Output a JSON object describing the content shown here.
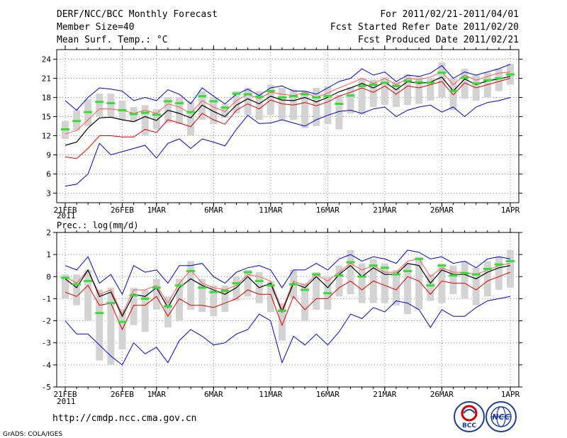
{
  "header": {
    "title": "DERF/NCC/BCC Monthly Forecast",
    "member_size": "Member Size=40",
    "variable": "Mean Surf. Temp.: °C",
    "period": "For 2011/02/21-2011/04/01",
    "refer_date": "Fcst Started Refer Date 2011/02/20",
    "produced_date": "Fcst Produced Date 2011/02/21"
  },
  "footer": {
    "url": "http://cmdp.ncc.cma.gov.cn",
    "credit": "GrADS: COLA/IGES",
    "logo_bcc_text": "BCC",
    "logo_ncc_text": "NCC"
  },
  "colors": {
    "envelope": "#0000cc",
    "mean": "#000000",
    "lower": "#dd0000",
    "upper": "#ff5555",
    "box": "#d3d3d3",
    "median": "#33dd33",
    "grid": "#555555"
  },
  "chart_data": [
    {
      "type": "line",
      "title": "Mean Surf. Temp.: °C",
      "ylim": [
        1.5,
        25.5
      ],
      "yticks": [
        3,
        6,
        9,
        12,
        15,
        18,
        21,
        24
      ],
      "xlim": [
        0,
        39
      ],
      "x_tick_positions": [
        0,
        5,
        8,
        13,
        18,
        23,
        28,
        33,
        39
      ],
      "x_tick_labels": [
        "21FEB",
        "26FEB",
        "1MAR",
        "6MAR",
        "11MAR",
        "16MAR",
        "21MAR",
        "26MAR",
        "1APR"
      ],
      "x_year_label": "2011",
      "series": [
        {
          "name": "max",
          "values": [
            17.5,
            16.0,
            18.0,
            19.5,
            19.3,
            19.0,
            17.5,
            18.0,
            17.5,
            19.2,
            18.5,
            17.0,
            19.5,
            18.2,
            17.0,
            18.5,
            19.3,
            18.3,
            19.5,
            19.8,
            19.0,
            19.0,
            18.5,
            19.5,
            20.5,
            21.0,
            22.5,
            21.5,
            22.0,
            20.5,
            21.5,
            21.3,
            21.8,
            23.0,
            21.0,
            22.0,
            21.5,
            22.0,
            22.5,
            23.2
          ]
        },
        {
          "name": "upper",
          "values": [
            12.3,
            12.8,
            14.5,
            16.2,
            16.2,
            16.0,
            15.5,
            16.0,
            15.5,
            17.0,
            16.5,
            15.5,
            17.5,
            16.5,
            15.8,
            17.5,
            18.5,
            17.8,
            18.8,
            18.5,
            18.3,
            18.8,
            18.0,
            18.7,
            19.5,
            20.2,
            21.0,
            20.2,
            21.0,
            20.0,
            21.0,
            20.8,
            21.2,
            22.0,
            20.0,
            21.5,
            20.7,
            21.3,
            21.8,
            22.0
          ]
        },
        {
          "name": "mean",
          "values": [
            10.5,
            11.0,
            13.2,
            14.8,
            14.9,
            14.5,
            14.2,
            15.0,
            14.4,
            16.0,
            15.5,
            14.8,
            16.8,
            15.8,
            15.0,
            16.8,
            17.8,
            17.0,
            18.2,
            17.6,
            17.5,
            18.0,
            17.3,
            18.0,
            18.9,
            19.5,
            20.2,
            19.5,
            20.4,
            19.2,
            20.5,
            20.2,
            20.4,
            21.2,
            19.0,
            20.9,
            20.0,
            20.6,
            20.9,
            21.3
          ]
        },
        {
          "name": "lower",
          "values": [
            8.7,
            8.4,
            10.0,
            12.0,
            12.0,
            11.8,
            11.8,
            13.0,
            12.5,
            14.5,
            14.0,
            13.4,
            15.5,
            14.5,
            13.8,
            16.0,
            17.0,
            16.2,
            17.6,
            17.0,
            16.8,
            17.2,
            16.7,
            17.3,
            18.2,
            18.8,
            19.5,
            18.8,
            19.8,
            18.5,
            19.8,
            19.5,
            20.0,
            20.5,
            18.4,
            20.3,
            19.5,
            20.0,
            20.5,
            21.0
          ]
        },
        {
          "name": "min",
          "values": [
            4.1,
            4.4,
            6.0,
            10.8,
            9.0,
            9.5,
            10.0,
            10.5,
            8.5,
            10.8,
            11.5,
            10.0,
            11.5,
            11.0,
            10.4,
            13.0,
            15.2,
            13.9,
            14.0,
            14.5,
            14.0,
            13.5,
            14.5,
            15.2,
            15.8,
            16.0,
            15.5,
            16.2,
            16.5,
            15.0,
            16.0,
            16.5,
            16.8,
            15.7,
            16.5,
            15.0,
            16.5,
            17.2,
            17.5,
            18.0
          ]
        }
      ],
      "boxes": [
        {
          "low": 11.5,
          "high": 14.3,
          "median": 13.0
        },
        {
          "low": 12.8,
          "high": 16.0,
          "median": 14.3
        },
        {
          "low": 13.5,
          "high": 17.7,
          "median": 15.7
        },
        {
          "low": 15.0,
          "high": 18.6,
          "median": 17.3
        },
        {
          "low": 14.8,
          "high": 18.6,
          "median": 17.1
        },
        {
          "low": 14.5,
          "high": 17.5,
          "median": 16.0
        },
        {
          "low": 14.2,
          "high": 16.5,
          "median": 15.4
        },
        {
          "low": 12.0,
          "high": 16.8,
          "median": 15.6
        },
        {
          "low": 13.0,
          "high": 16.2,
          "median": 15.3
        },
        {
          "low": 14.0,
          "high": 18.0,
          "median": 17.4
        },
        {
          "low": 13.8,
          "high": 18.0,
          "median": 17.1
        },
        {
          "low": 12.0,
          "high": 17.4,
          "median": 15.7
        },
        {
          "low": 14.5,
          "high": 19.0,
          "median": 18.2
        },
        {
          "low": 13.8,
          "high": 18.0,
          "median": 17.4
        },
        {
          "low": 14.8,
          "high": 17.0,
          "median": 16.4
        },
        {
          "low": 15.5,
          "high": 19.0,
          "median": 18.6
        },
        {
          "low": 15.2,
          "high": 19.5,
          "median": 18.5
        },
        {
          "low": 14.5,
          "high": 19.0,
          "median": 18.1
        },
        {
          "low": 15.3,
          "high": 20.0,
          "median": 19.0
        },
        {
          "low": 14.5,
          "high": 19.5,
          "median": 18.0
        },
        {
          "low": 14.5,
          "high": 19.3,
          "median": 18.2
        },
        {
          "low": 13.2,
          "high": 19.0,
          "median": 18.5
        },
        {
          "low": 13.5,
          "high": 19.5,
          "median": 18.0
        },
        {
          "low": 13.8,
          "high": 19.8,
          "median": 18.2
        },
        {
          "low": 13.0,
          "high": 18.4,
          "median": 17.0
        },
        {
          "low": 15.5,
          "high": 19.6,
          "median": 18.3
        },
        {
          "low": 15.3,
          "high": 21.0,
          "median": 19.8
        },
        {
          "low": 16.5,
          "high": 20.8,
          "median": 20.0
        },
        {
          "low": 16.8,
          "high": 21.2,
          "median": 20.3
        },
        {
          "low": 16.5,
          "high": 20.5,
          "median": 19.8
        },
        {
          "low": 16.8,
          "high": 21.6,
          "median": 20.6
        },
        {
          "low": 17.0,
          "high": 21.3,
          "median": 20.4
        },
        {
          "low": 17.5,
          "high": 21.0,
          "median": 20.3
        },
        {
          "low": 18.0,
          "high": 23.5,
          "median": 21.9
        },
        {
          "low": 16.0,
          "high": 21.0,
          "median": 19.0
        },
        {
          "low": 17.8,
          "high": 22.5,
          "median": 21.1
        },
        {
          "low": 17.5,
          "high": 21.5,
          "median": 20.2
        },
        {
          "low": 18.0,
          "high": 21.9,
          "median": 20.7
        },
        {
          "low": 19.0,
          "high": 22.5,
          "median": 21.0
        },
        {
          "low": 20.0,
          "high": 23.3,
          "median": 21.6
        }
      ]
    },
    {
      "type": "line",
      "title": "Prec.: log(mm/d)",
      "ylim": [
        -5,
        2
      ],
      "yticks": [
        -5,
        -4,
        -3,
        -2,
        -1,
        0,
        1,
        2
      ],
      "xlim": [
        0,
        39
      ],
      "x_tick_positions": [
        0,
        5,
        8,
        13,
        18,
        23,
        28,
        33,
        39
      ],
      "x_tick_labels": [
        "21FEB",
        "26FEB",
        "1MAR",
        "6MAR",
        "11MAR",
        "16MAR",
        "21MAR",
        "26MAR",
        "1APR"
      ],
      "x_year_label": "2011",
      "series": [
        {
          "name": "max",
          "values": [
            0.5,
            0.3,
            0.9,
            -0.3,
            0.1,
            -0.8,
            0.5,
            0.2,
            0.3,
            -0.3,
            0.5,
            0.5,
            0.6,
            0.0,
            -0.3,
            0.2,
            0.4,
            0.5,
            0.3,
            -0.5,
            0.3,
            0.3,
            0.6,
            0.3,
            0.8,
            1.0,
            0.7,
            0.9,
            0.8,
            0.6,
            1.2,
            1.1,
            0.8,
            0.9,
            0.6,
            0.7,
            0.4,
            0.8,
            0.9,
            0.8
          ]
        },
        {
          "name": "upper",
          "values": [
            0.0,
            -0.3,
            0.3,
            -0.8,
            -0.6,
            -1.7,
            -0.6,
            -0.6,
            -0.4,
            -1.2,
            -0.3,
            0.3,
            -0.3,
            -0.5,
            -0.6,
            -0.4,
            0.1,
            0.0,
            -0.2,
            -1.5,
            -0.2,
            -0.4,
            0.1,
            -0.2,
            0.2,
            0.6,
            0.3,
            0.5,
            0.2,
            0.2,
            0.7,
            0.8,
            0.0,
            0.4,
            0.2,
            0.2,
            0.1,
            0.3,
            0.5,
            0.6
          ]
        },
        {
          "name": "mean",
          "values": [
            -0.1,
            -0.5,
            0.3,
            -0.9,
            -0.7,
            -1.8,
            -0.8,
            -0.9,
            -0.5,
            -1.4,
            -0.5,
            -0.1,
            -0.4,
            -0.6,
            -0.8,
            -0.5,
            0.0,
            -0.5,
            -0.3,
            -1.6,
            -0.3,
            -0.5,
            0.0,
            -0.5,
            0.1,
            0.5,
            0.0,
            0.4,
            0.1,
            0.1,
            0.6,
            0.5,
            -0.3,
            0.3,
            0.1,
            0.1,
            -0.1,
            0.2,
            0.4,
            0.5
          ]
        },
        {
          "name": "lower",
          "values": [
            -0.7,
            -0.9,
            -0.4,
            -1.3,
            -1.2,
            -2.4,
            -1.3,
            -1.3,
            -0.9,
            -1.8,
            -1.0,
            -1.3,
            -1.3,
            -1.4,
            -1.2,
            -1.0,
            -0.6,
            -0.8,
            -0.8,
            -2.2,
            -0.9,
            -1.5,
            -1.0,
            -1.0,
            -0.5,
            -0.2,
            -0.6,
            -0.2,
            -0.4,
            -0.6,
            0.0,
            -0.2,
            -0.8,
            -0.2,
            -0.3,
            -0.3,
            -0.6,
            -0.2,
            0.0,
            0.2
          ]
        },
        {
          "name": "min",
          "values": [
            -2.0,
            -2.6,
            -2.6,
            -3.1,
            -3.6,
            -4.0,
            -3.0,
            -3.5,
            -3.2,
            -3.9,
            -2.9,
            -2.4,
            -2.7,
            -3.1,
            -3.0,
            -2.6,
            -2.4,
            -1.7,
            -2.0,
            -3.9,
            -2.7,
            -3.1,
            -2.6,
            -3.1,
            -2.5,
            -1.7,
            -1.9,
            -1.4,
            -1.6,
            -1.1,
            -1.2,
            -1.5,
            -2.3,
            -1.5,
            -1.8,
            -1.8,
            -1.4,
            -1.1,
            -1.0,
            -0.9
          ]
        }
      ],
      "boxes": [
        {
          "low": -1.0,
          "high": 0.1,
          "median": -0.05
        },
        {
          "low": -1.3,
          "high": 0.1,
          "median": -0.35
        },
        {
          "low": -2.0,
          "high": 0.3,
          "median": -0.2
        },
        {
          "low": -3.8,
          "high": -0.6,
          "median": -1.65
        },
        {
          "low": -4.0,
          "high": -0.5,
          "median": -1.2
        },
        {
          "low": -3.3,
          "high": -1.5,
          "median": -2.05
        },
        {
          "low": -2.2,
          "high": -0.5,
          "median": -0.85
        },
        {
          "low": -2.5,
          "high": -0.6,
          "median": -1.0
        },
        {
          "low": -1.5,
          "high": -0.1,
          "median": -0.5
        },
        {
          "low": -2.3,
          "high": -0.9,
          "median": -1.35
        },
        {
          "low": -2.0,
          "high": -0.1,
          "median": -0.4
        },
        {
          "low": -1.5,
          "high": 0.7,
          "median": 0.25
        },
        {
          "low": -1.6,
          "high": -0.1,
          "median": -0.5
        },
        {
          "low": -1.8,
          "high": -0.4,
          "median": -0.7
        },
        {
          "low": -1.6,
          "high": -0.4,
          "median": -0.65
        },
        {
          "low": -1.1,
          "high": 0.0,
          "median": -0.3
        },
        {
          "low": -0.9,
          "high": 0.3,
          "median": 0.2
        },
        {
          "low": -1.2,
          "high": 0.2,
          "median": -0.2
        },
        {
          "low": -1.6,
          "high": -0.2,
          "median": -0.4
        },
        {
          "low": -2.9,
          "high": -1.2,
          "median": -1.55
        },
        {
          "low": -1.0,
          "high": 0.3,
          "median": -0.35
        },
        {
          "low": -2.0,
          "high": -0.3,
          "median": -0.6
        },
        {
          "low": -1.5,
          "high": 0.2,
          "median": 0.1
        },
        {
          "low": -1.5,
          "high": 0.0,
          "median": -0.75
        },
        {
          "low": -0.9,
          "high": 0.5,
          "median": 0.05
        },
        {
          "low": -0.8,
          "high": 1.2,
          "median": 0.65
        },
        {
          "low": -1.2,
          "high": 0.6,
          "median": 0.0
        },
        {
          "low": -1.2,
          "high": 0.8,
          "median": 0.5
        },
        {
          "low": -1.2,
          "high": 0.6,
          "median": 0.4
        },
        {
          "low": -1.3,
          "high": 0.3,
          "median": 0.1
        },
        {
          "low": -1.7,
          "high": 0.6,
          "median": 0.25
        },
        {
          "low": -1.5,
          "high": 0.9,
          "median": 0.8
        },
        {
          "low": -1.1,
          "high": 0.1,
          "median": -0.4
        },
        {
          "low": -1.2,
          "high": 0.6,
          "median": 0.5
        },
        {
          "low": -0.8,
          "high": 0.5,
          "median": 0.05
        },
        {
          "low": -1.0,
          "high": 0.7,
          "median": 0.15
        },
        {
          "low": -1.3,
          "high": 0.4,
          "median": 0.1
        },
        {
          "low": -0.9,
          "high": 0.7,
          "median": 0.35
        },
        {
          "low": -0.6,
          "high": 0.9,
          "median": 0.55
        },
        {
          "low": -0.5,
          "high": 1.2,
          "median": 0.7
        }
      ]
    }
  ]
}
